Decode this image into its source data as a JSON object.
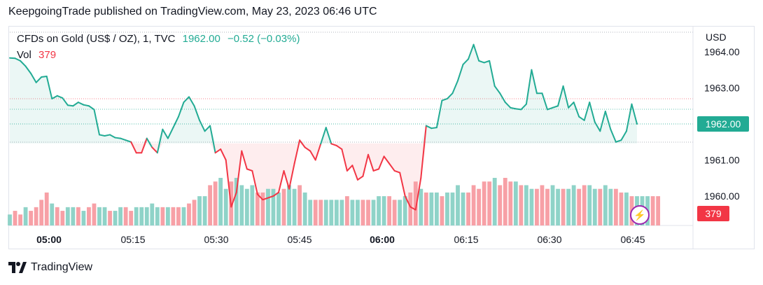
{
  "header": {
    "text": "KeepgoingTrade published on TradingView.com, May 23, 2023 06:46 UTC"
  },
  "legend": {
    "symbol": "CFDs on Gold (US$ / OZ), 1, TVC",
    "price": "1962.00",
    "change": "−0.52 (−0.03%)",
    "vol_label": "Vol",
    "vol_value": "379"
  },
  "axis": {
    "currency": "USD"
  },
  "badges": {
    "price": "1962.00",
    "volume": "379"
  },
  "footer": {
    "brand": "TradingView"
  },
  "colors": {
    "up": "#22ab94",
    "down": "#f23645",
    "vol_up": "#8fd3c8",
    "vol_down": "#f7a0a6",
    "accent": "#9c27b0"
  },
  "chart_data": {
    "type": "line",
    "title": "CFDs on Gold (US$ / OZ), 1, TVC",
    "ylabel": "USD",
    "y_ticks": [
      "1960.00",
      "1961.00",
      "1962.00",
      "1963.00",
      "1964.00"
    ],
    "ylim": [
      1959.3,
      1964.3
    ],
    "x_ticks": [
      "05:00",
      "05:15",
      "05:30",
      "05:45",
      "06:00",
      "06:15",
      "06:30",
      "06:45"
    ],
    "x_ticks_bold": [
      "05:00",
      "06:00"
    ],
    "baseline": 1961.46,
    "price_series": {
      "name": "Price",
      "values": [
        1963.83,
        1963.82,
        1963.75,
        1963.6,
        1963.4,
        1963.15,
        1963.3,
        1963.32,
        1962.7,
        1962.78,
        1962.72,
        1962.52,
        1962.5,
        1962.6,
        1962.53,
        1962.5,
        1962.4,
        1961.7,
        1961.67,
        1961.7,
        1961.62,
        1961.6,
        1961.55,
        1961.5,
        1961.2,
        1961.2,
        1961.6,
        1961.35,
        1961.2,
        1961.85,
        1961.6,
        1961.9,
        1962.2,
        1962.6,
        1962.75,
        1962.5,
        1962.1,
        1961.8,
        1961.95,
        1961.2,
        1961.3,
        1961.0,
        1959.7,
        1960.1,
        1961.25,
        1960.75,
        1960.7,
        1960.05,
        1959.9,
        1959.95,
        1960.0,
        1960.1,
        1960.7,
        1960.2,
        1960.9,
        1961.55,
        1961.35,
        1961.25,
        1961.0,
        1961.45,
        1961.9,
        1961.45,
        1961.4,
        1961.3,
        1960.7,
        1960.85,
        1960.45,
        1960.55,
        1961.15,
        1960.7,
        1960.75,
        1961.1,
        1960.9,
        1960.7,
        1960.65,
        1960.0,
        1959.7,
        1959.62,
        1960.5,
        1961.95,
        1961.88,
        1961.9,
        1962.65,
        1962.7,
        1962.85,
        1963.2,
        1963.65,
        1963.8,
        1964.2,
        1963.75,
        1963.7,
        1963.75,
        1963.05,
        1962.85,
        1962.6,
        1962.45,
        1962.42,
        1962.4,
        1962.55,
        1963.5,
        1962.85,
        1962.85,
        1962.4,
        1962.45,
        1962.5,
        1963.05,
        1962.45,
        1962.6,
        1962.2,
        1962.1,
        1962.6,
        1962.05,
        1961.8,
        1962.35,
        1961.85,
        1961.5,
        1961.55,
        1961.8,
        1962.55,
        1962.0
      ]
    },
    "volume_series": {
      "name": "Vol",
      "values": [
        3,
        4,
        3,
        5,
        4,
        5,
        7,
        9,
        6,
        5,
        4,
        5,
        5,
        5,
        4,
        5,
        6,
        5,
        5,
        4,
        4,
        5,
        5,
        4,
        5,
        5,
        5,
        6,
        5,
        5,
        5,
        5,
        5,
        5,
        6,
        7,
        8,
        8,
        11,
        12,
        13,
        10,
        12,
        13,
        11,
        10,
        11,
        9,
        9,
        10,
        10,
        9,
        10,
        11,
        10,
        11,
        9,
        7,
        7,
        7,
        7,
        7,
        7,
        7,
        8,
        7,
        7,
        7,
        7,
        7,
        8,
        8,
        8,
        7,
        7,
        8,
        9,
        12,
        10,
        9,
        9,
        9,
        8,
        9,
        9,
        11,
        9,
        9,
        11,
        10,
        12,
        12,
        13,
        11,
        13,
        12,
        12,
        11,
        11,
        10,
        10,
        11,
        10,
        11,
        10,
        10,
        10,
        11,
        10,
        11,
        11,
        10,
        10,
        11,
        10,
        10,
        9,
        9,
        8,
        8,
        8,
        8,
        8,
        8
      ],
      "colors_up_down": "up uses up color, down uses down color",
      "vol_directions": "udduddddudduududduuduudduuuuududdudduudduuduuuudduuuduuduudduuuuduudduuudduudduduuduuuuddddduddduduuddduuduudduuduudduduuudduudddddduud"
    },
    "last_volume": 379,
    "legend": [
      "CFDs on Gold (US$ / OZ), 1, TVC",
      "Vol"
    ]
  }
}
